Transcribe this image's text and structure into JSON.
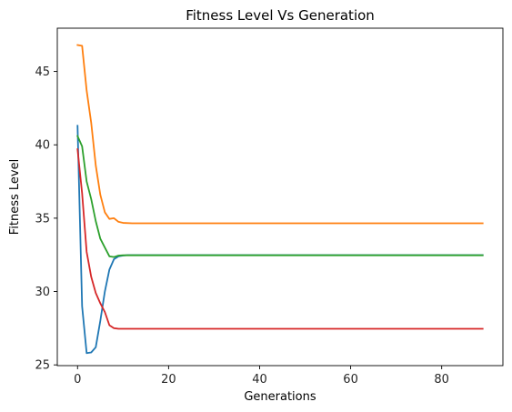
{
  "chart_data": {
    "type": "line",
    "title": "Fitness Level Vs Generation",
    "xlabel": "Generations",
    "ylabel": "Fitness Level",
    "xlim": [
      -4.45,
      93.45
    ],
    "ylim": [
      24.95,
      47.95
    ],
    "xticks": [
      0,
      20,
      40,
      60,
      80
    ],
    "yticks": [
      25,
      30,
      35,
      40,
      45
    ],
    "xtick_labels": [
      "0",
      "20",
      "40",
      "60",
      "80"
    ],
    "ytick_labels": [
      "25",
      "30",
      "35",
      "40",
      "45"
    ],
    "grid": false,
    "legend": "none",
    "series": [
      {
        "color": "#1f77b4",
        "points": [
          [
            0,
            41.3
          ],
          [
            1,
            29.0
          ],
          [
            2,
            25.8
          ],
          [
            3,
            25.85
          ],
          [
            4,
            26.2
          ],
          [
            5,
            28.0
          ],
          [
            6,
            30.0
          ],
          [
            7,
            31.5
          ],
          [
            8,
            32.2
          ],
          [
            9,
            32.4
          ],
          [
            10,
            32.45
          ],
          [
            11,
            32.48
          ],
          [
            89,
            32.48
          ]
        ]
      },
      {
        "color": "#ff7f0e",
        "points": [
          [
            0,
            46.8
          ],
          [
            1,
            46.75
          ],
          [
            2,
            43.7
          ],
          [
            3,
            41.5
          ],
          [
            4,
            38.6
          ],
          [
            5,
            36.6
          ],
          [
            6,
            35.4
          ],
          [
            7,
            34.95
          ],
          [
            8,
            35.0
          ],
          [
            9,
            34.75
          ],
          [
            10,
            34.68
          ],
          [
            12,
            34.65
          ],
          [
            89,
            34.65
          ]
        ]
      },
      {
        "color": "#2ca02c",
        "points": [
          [
            0,
            40.6
          ],
          [
            1,
            39.9
          ],
          [
            2,
            37.5
          ],
          [
            3,
            36.3
          ],
          [
            4,
            34.8
          ],
          [
            5,
            33.6
          ],
          [
            6,
            33.0
          ],
          [
            7,
            32.4
          ],
          [
            8,
            32.35
          ],
          [
            9,
            32.45
          ],
          [
            10,
            32.47
          ],
          [
            89,
            32.47
          ]
        ]
      },
      {
        "color": "#d62728",
        "points": [
          [
            0,
            39.7
          ],
          [
            1,
            36.7
          ],
          [
            2,
            32.7
          ],
          [
            3,
            31.0
          ],
          [
            4,
            29.9
          ],
          [
            5,
            29.2
          ],
          [
            6,
            28.6
          ],
          [
            7,
            27.7
          ],
          [
            8,
            27.5
          ],
          [
            9,
            27.46
          ],
          [
            89,
            27.46
          ]
        ]
      }
    ]
  }
}
